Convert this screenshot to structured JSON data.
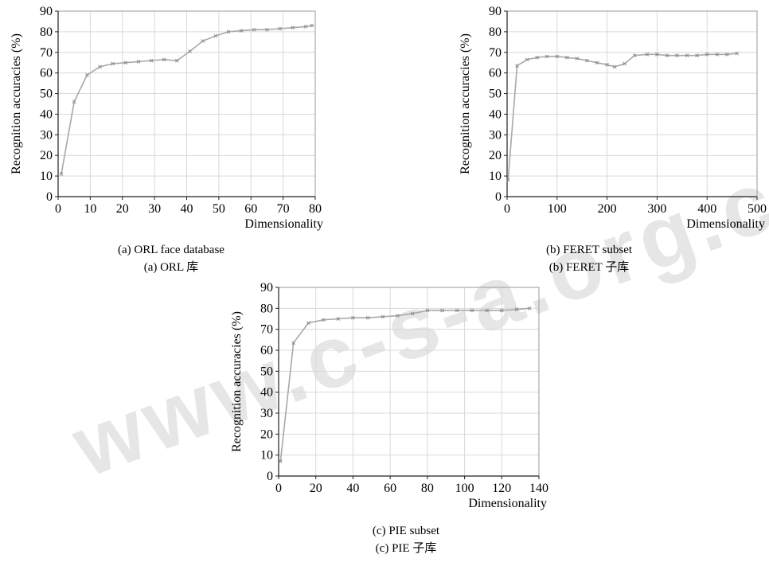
{
  "watermark": "www.c-s-a.org.cn",
  "chart_data": [
    {
      "type": "line",
      "xlabel": "Dimensionality",
      "ylabel": "Recognition accuracies (%)",
      "xlim": [
        0,
        80
      ],
      "ylim": [
        0,
        90
      ],
      "xticks": [
        0,
        10,
        20,
        30,
        40,
        50,
        60,
        70,
        80
      ],
      "yticks": [
        0,
        10,
        20,
        30,
        40,
        50,
        60,
        70,
        80,
        90
      ],
      "grid": true,
      "caption_en": "(a) ORL face database",
      "caption_cn": "(a) ORL 库",
      "series": [
        {
          "color": "#a8a8a8",
          "x": [
            1,
            5,
            9,
            13,
            17,
            21,
            25,
            29,
            33,
            37,
            41,
            45,
            49,
            53,
            57,
            61,
            65,
            69,
            73,
            77,
            79
          ],
          "y": [
            11,
            46,
            59,
            63,
            64.5,
            65,
            65.5,
            66,
            66.5,
            66,
            70.5,
            75.5,
            78,
            80,
            80.5,
            81,
            81,
            81.5,
            82,
            82.5,
            83
          ]
        }
      ]
    },
    {
      "type": "line",
      "xlabel": "Dimensionality",
      "ylabel": "Recognition accuracies (%)",
      "xlim": [
        0,
        500
      ],
      "ylim": [
        0,
        90
      ],
      "xticks": [
        0,
        100,
        200,
        300,
        400,
        500
      ],
      "yticks": [
        0,
        10,
        20,
        30,
        40,
        50,
        60,
        70,
        80,
        90
      ],
      "grid": true,
      "caption_en": "(b) FERET subset",
      "caption_cn": "(b) FERET 子库",
      "series": [
        {
          "color": "#a8a8a8",
          "x": [
            2,
            20,
            40,
            60,
            80,
            100,
            120,
            140,
            160,
            180,
            200,
            215,
            235,
            255,
            280,
            300,
            320,
            340,
            360,
            380,
            400,
            420,
            440,
            460
          ],
          "y": [
            8,
            63.5,
            66.5,
            67.5,
            68,
            68,
            67.5,
            67,
            66,
            65,
            64,
            63,
            64.5,
            68.5,
            69,
            69,
            68.5,
            68.5,
            68.5,
            68.5,
            69,
            69,
            69,
            69.5
          ]
        }
      ]
    },
    {
      "type": "line",
      "xlabel": "Dimensionality",
      "ylabel": "Recognition accuracies (%)",
      "xlim": [
        0,
        140
      ],
      "ylim": [
        0,
        90
      ],
      "xticks": [
        0,
        20,
        40,
        60,
        80,
        100,
        120,
        140
      ],
      "yticks": [
        0,
        10,
        20,
        30,
        40,
        50,
        60,
        70,
        80,
        90
      ],
      "grid": true,
      "caption_en": "(c) PIE subset",
      "caption_cn": "(c) PIE 子库",
      "series": [
        {
          "color": "#a8a8a8",
          "x": [
            1,
            8,
            16,
            24,
            32,
            40,
            48,
            56,
            64,
            72,
            80,
            88,
            96,
            104,
            112,
            120,
            128,
            135
          ],
          "y": [
            7,
            63.5,
            73,
            74.5,
            75,
            75.5,
            75.5,
            76,
            76.5,
            77.5,
            79,
            79,
            79,
            79,
            79,
            79,
            79.5,
            80
          ]
        }
      ]
    }
  ]
}
